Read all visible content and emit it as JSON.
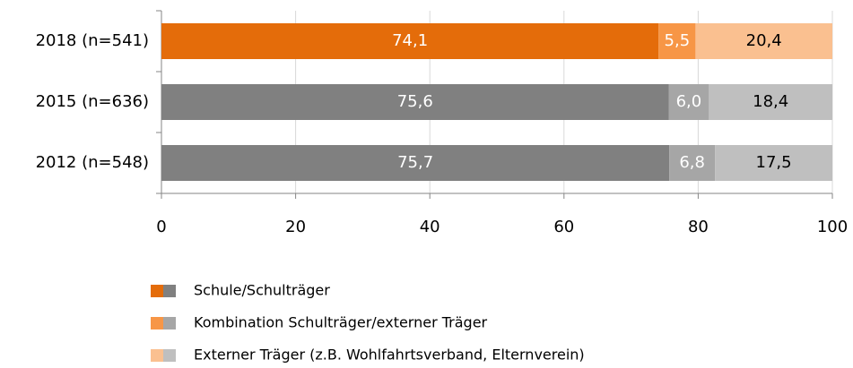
{
  "chart_data": {
    "type": "stacked-bar-horizontal",
    "categories": [
      "2018 (n=541)",
      "2015 (n=636)",
      "2012 (n=548)"
    ],
    "series": [
      {
        "name": "Schule/Schulträger",
        "colors": [
          "#e46c0a",
          "#808080",
          "#808080"
        ],
        "label_color": "#ffffff",
        "values": [
          74.1,
          75.6,
          75.7
        ],
        "value_labels": [
          "74,1",
          "75,6",
          "75,7"
        ]
      },
      {
        "name": "Kombination Schulträger/externer Träger",
        "colors": [
          "#f79646",
          "#a6a6a6",
          "#a6a6a6"
        ],
        "label_color": "#ffffff",
        "values": [
          5.5,
          6.0,
          6.8
        ],
        "value_labels": [
          "5,5",
          "6,0",
          "6,8"
        ]
      },
      {
        "name": "Externer Träger (z.B. Wohlfahrtsverband, Elternverein)",
        "colors": [
          "#fac090",
          "#bfbfbf",
          "#bfbfbf"
        ],
        "label_color": "#000000",
        "values": [
          20.4,
          18.4,
          17.5
        ],
        "value_labels": [
          "20,4",
          "18,4",
          "17,5"
        ]
      }
    ],
    "xlim": [
      0,
      100
    ],
    "xticks": [
      0,
      20,
      40,
      60,
      80,
      100
    ],
    "grid": true
  }
}
